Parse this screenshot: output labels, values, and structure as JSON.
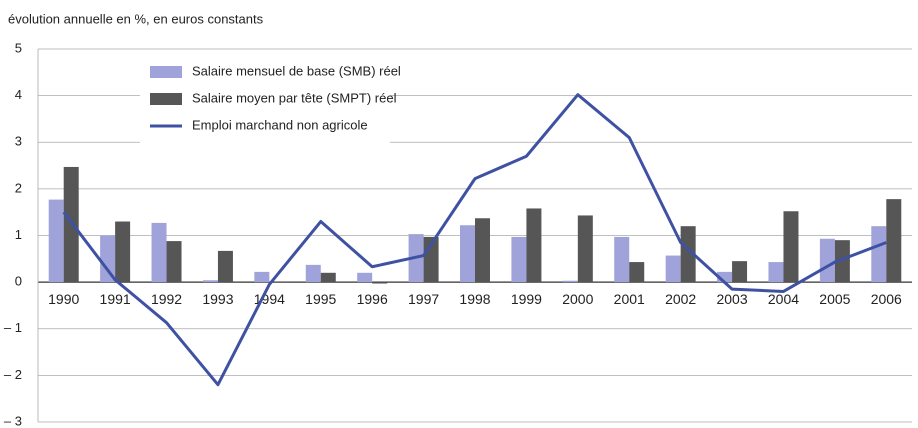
{
  "chart_data": {
    "type": "bar-line",
    "ylabel": "évolution annuelle en %, en euros constants",
    "categories": [
      "1990",
      "1991",
      "1992",
      "1993",
      "1994",
      "1995",
      "1996",
      "1997",
      "1998",
      "1999",
      "2000",
      "2001",
      "2002",
      "2003",
      "2004",
      "2005",
      "2006"
    ],
    "series": [
      {
        "name": "Salaire mensuel de base (SMB) réel",
        "type": "bar",
        "color": "#a0a3d9",
        "values": [
          1.77,
          1.0,
          1.27,
          0.04,
          0.22,
          0.37,
          0.2,
          1.03,
          1.22,
          0.97,
          0.03,
          0.97,
          0.57,
          0.22,
          0.43,
          0.93,
          1.2
        ]
      },
      {
        "name": "Salaire moyen par tête (SMPT) réel",
        "type": "bar",
        "color": "#565656",
        "values": [
          2.47,
          1.3,
          0.88,
          0.67,
          0,
          0.2,
          -0.03,
          0.97,
          1.37,
          1.58,
          1.43,
          0.43,
          1.2,
          0.45,
          1.52,
          0.9,
          1.78
        ]
      },
      {
        "name": "Emploi marchand non agricole",
        "type": "line",
        "color": "#3f51a3",
        "values": [
          1.5,
          0.05,
          -0.87,
          -2.2,
          -0.05,
          1.3,
          0.33,
          0.57,
          2.22,
          2.7,
          4.02,
          3.1,
          0.85,
          -0.15,
          -0.2,
          0.43,
          0.85
        ]
      }
    ],
    "ylim": [
      -3,
      5
    ],
    "yticks": [
      {
        "value": -3,
        "label": "– 3"
      },
      {
        "value": -2,
        "label": "– 2"
      },
      {
        "value": -1,
        "label": "– 1"
      },
      0,
      1,
      2,
      3,
      4,
      5
    ],
    "grid": true,
    "legend": "upper left"
  }
}
